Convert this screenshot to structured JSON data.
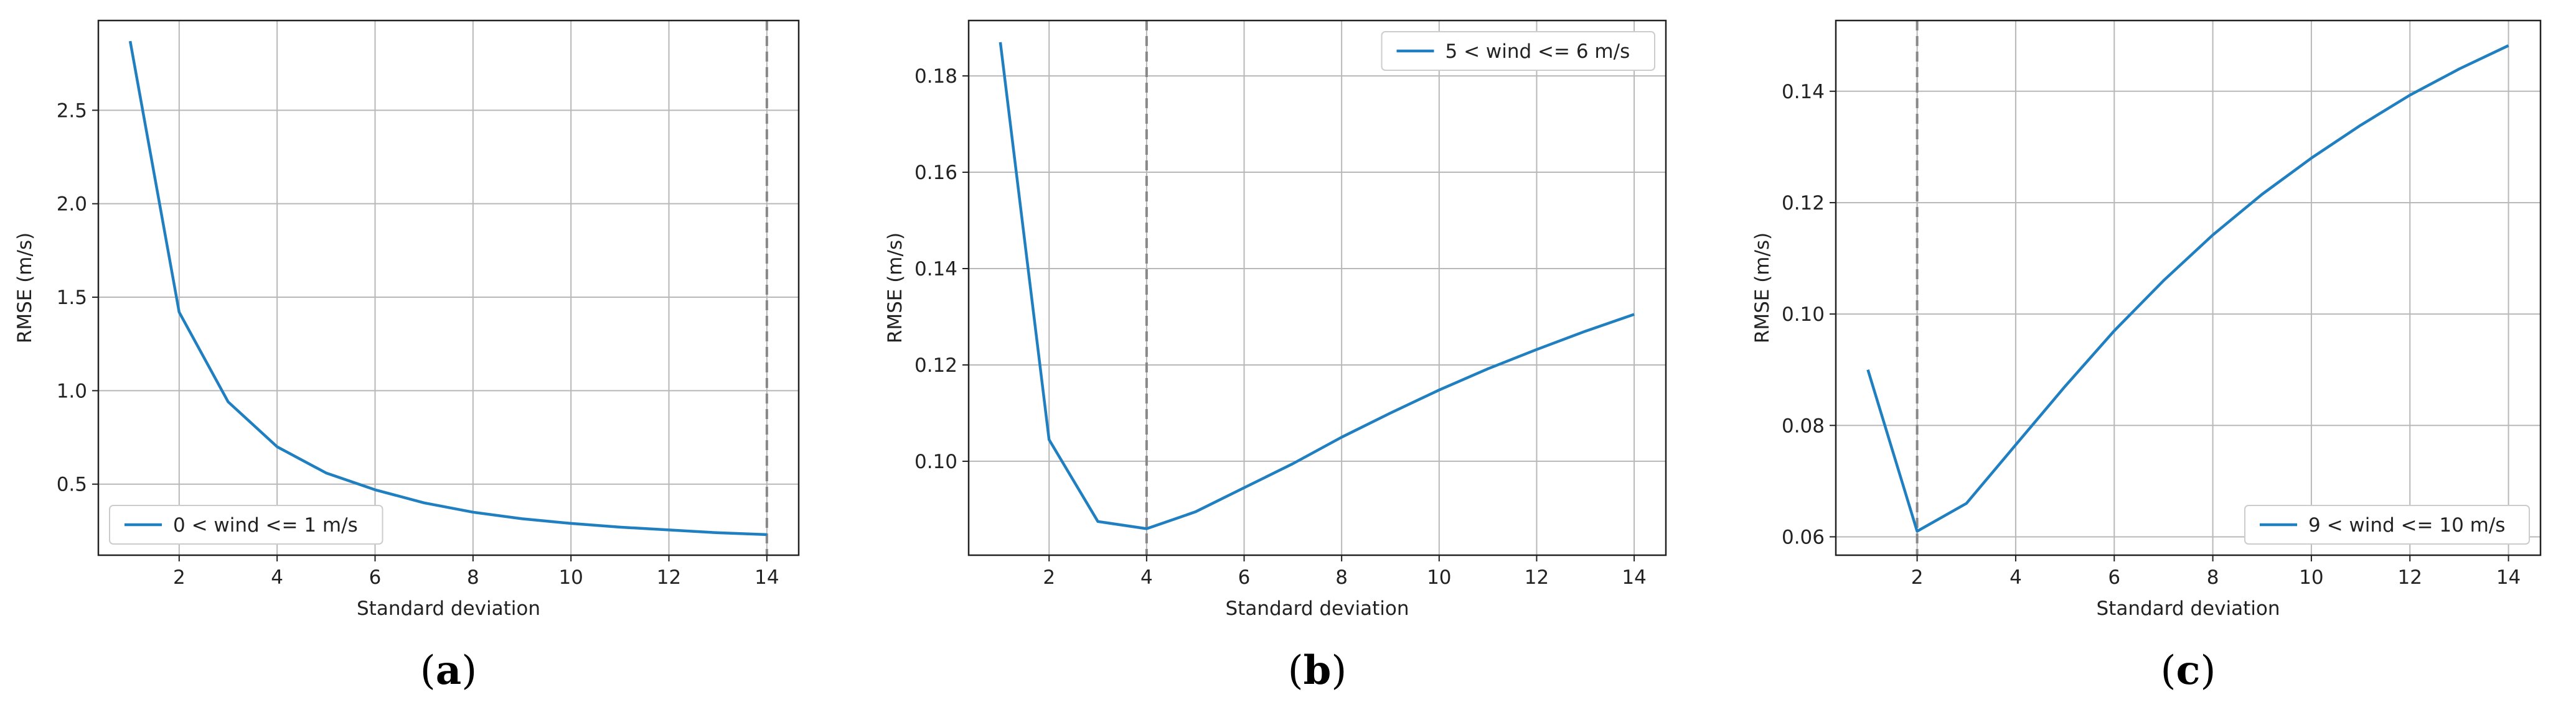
{
  "chart_data": [
    {
      "type": "line",
      "caption": "a",
      "xlabel": "Standard deviation",
      "ylabel": "RMSE (m/s)",
      "xlim": [
        0.35,
        14.65
      ],
      "ylim": [
        0.12,
        2.98
      ],
      "xticks": [
        2,
        4,
        6,
        8,
        10,
        12,
        14
      ],
      "xtick_labels": [
        "2",
        "4",
        "6",
        "8",
        "10",
        "12",
        "14"
      ],
      "yticks": [
        0.5,
        1.0,
        1.5,
        2.0,
        2.5
      ],
      "ytick_labels": [
        "0.5",
        "1.0",
        "1.5",
        "2.0",
        "2.5"
      ],
      "grid": true,
      "legend_position": "lower-left",
      "vline_x": 14,
      "series": [
        {
          "name": "0 < wind <= 1 m/s",
          "color": "#1f7fc0",
          "x": [
            1,
            2,
            3,
            4,
            5,
            6,
            7,
            8,
            9,
            10,
            11,
            12,
            13,
            14
          ],
          "values": [
            2.87,
            1.42,
            0.94,
            0.7,
            0.56,
            0.47,
            0.4,
            0.35,
            0.315,
            0.29,
            0.27,
            0.255,
            0.24,
            0.23
          ]
        }
      ]
    },
    {
      "type": "line",
      "caption": "b",
      "xlabel": "Standard deviation",
      "ylabel": "RMSE (m/s)",
      "xlim": [
        0.35,
        14.65
      ],
      "ylim": [
        0.0805,
        0.1915
      ],
      "xticks": [
        2,
        4,
        6,
        8,
        10,
        12,
        14
      ],
      "xtick_labels": [
        "2",
        "4",
        "6",
        "8",
        "10",
        "12",
        "14"
      ],
      "yticks": [
        0.1,
        0.12,
        0.14,
        0.16,
        0.18
      ],
      "ytick_labels": [
        "0.10",
        "0.12",
        "0.14",
        "0.16",
        "0.18"
      ],
      "grid": true,
      "legend_position": "upper-right",
      "vline_x": 4,
      "series": [
        {
          "name": "5 < wind <= 6 m/s",
          "color": "#1f7fc0",
          "x": [
            1,
            2,
            3,
            4,
            5,
            6,
            7,
            8,
            9,
            10,
            11,
            12,
            13,
            14
          ],
          "values": [
            0.187,
            0.1045,
            0.0875,
            0.086,
            0.0895,
            0.0945,
            0.0995,
            0.105,
            0.11,
            0.1148,
            0.1192,
            0.1232,
            0.127,
            0.1305
          ]
        }
      ]
    },
    {
      "type": "line",
      "caption": "c",
      "xlabel": "Standard deviation",
      "ylabel": "RMSE (m/s)",
      "xlim": [
        0.35,
        14.65
      ],
      "ylim": [
        0.0567,
        0.1527
      ],
      "xticks": [
        2,
        4,
        6,
        8,
        10,
        12,
        14
      ],
      "xtick_labels": [
        "2",
        "4",
        "6",
        "8",
        "10",
        "12",
        "14"
      ],
      "yticks": [
        0.06,
        0.08,
        0.1,
        0.12,
        0.14
      ],
      "ytick_labels": [
        "0.06",
        "0.08",
        "0.10",
        "0.12",
        "0.14"
      ],
      "grid": true,
      "legend_position": "lower-right",
      "vline_x": 2,
      "series": [
        {
          "name": "9 < wind <= 10 m/s",
          "color": "#1f7fc0",
          "x": [
            1,
            2,
            3,
            4,
            5,
            6,
            7,
            8,
            9,
            10,
            11,
            12,
            13,
            14
          ],
          "values": [
            0.09,
            0.061,
            0.066,
            0.0765,
            0.087,
            0.097,
            0.106,
            0.1142,
            0.1215,
            0.128,
            0.1339,
            0.1393,
            0.144,
            0.1482
          ]
        }
      ]
    }
  ]
}
